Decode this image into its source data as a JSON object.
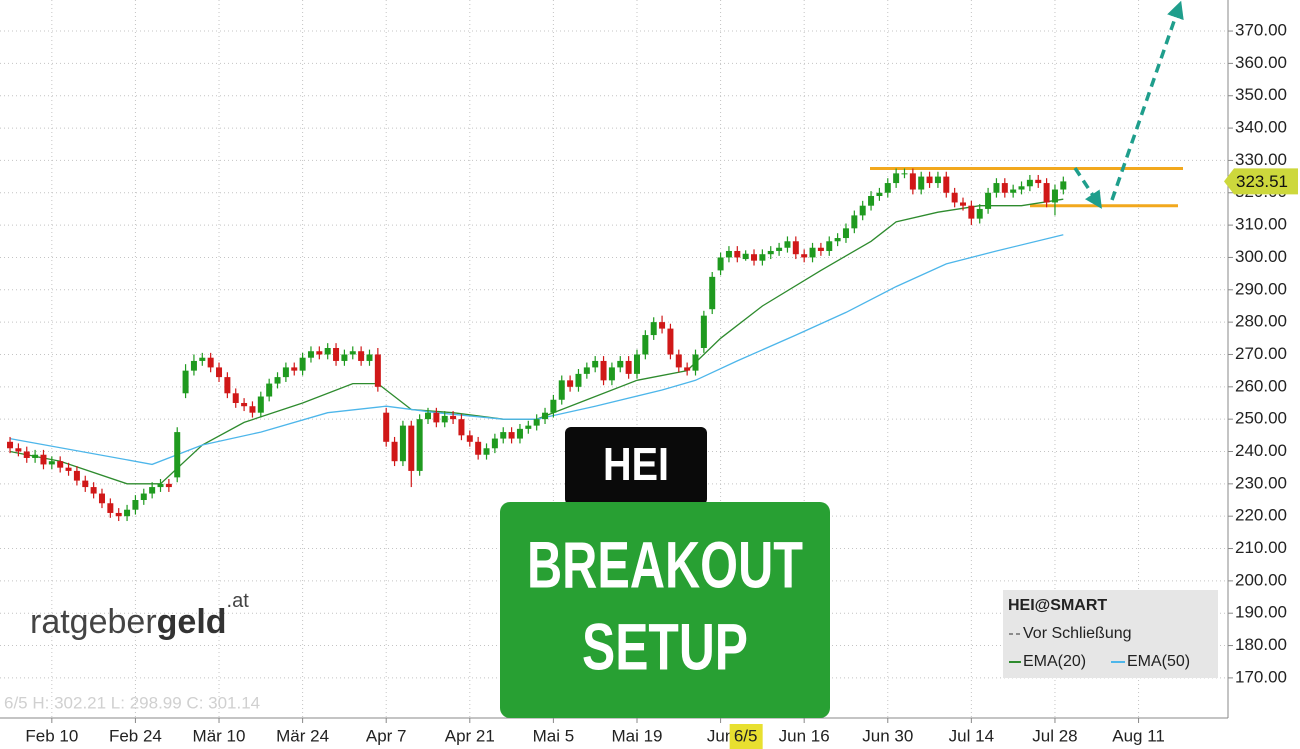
{
  "chart_data": {
    "type": "candlestick",
    "candles": {
      "name": "HEI@SMART",
      "up_color": "#1f9a1f",
      "down_color": "#d01818",
      "open": [
        243,
        241,
        240,
        238,
        239,
        236,
        237,
        235,
        234,
        231,
        229,
        227,
        224,
        221,
        220,
        222,
        225,
        227,
        229,
        230,
        232,
        258,
        265,
        268,
        269,
        266,
        263,
        258,
        255,
        254,
        252,
        257,
        261,
        263,
        266,
        265,
        269,
        271,
        270,
        272,
        268,
        270,
        271,
        268,
        270,
        252,
        243,
        237,
        248,
        234,
        250,
        252,
        249,
        251,
        250,
        245,
        243,
        239,
        241,
        244,
        246,
        244,
        247,
        248,
        250,
        252,
        256,
        262,
        260,
        264,
        266,
        268,
        262,
        266,
        268,
        264,
        270,
        276,
        280,
        278,
        270,
        266,
        265,
        272,
        284,
        296,
        300,
        302,
        299.5,
        301,
        299,
        301,
        302,
        303,
        305,
        301,
        300,
        303,
        302,
        305,
        306,
        309,
        313,
        316,
        319,
        320,
        323,
        326,
        326,
        321,
        325,
        323,
        325,
        320,
        317,
        316,
        312,
        315,
        320,
        323,
        320,
        321,
        322,
        324,
        323,
        317,
        321
      ],
      "high": [
        244.5,
        242.5,
        241.5,
        240.5,
        240.5,
        238.5,
        238.5,
        236.5,
        235.5,
        232.5,
        230.5,
        228.5,
        225.5,
        222.5,
        223.5,
        226.5,
        228.5,
        230.5,
        231.5,
        231.5,
        247.5,
        267,
        270,
        270.5,
        270.5,
        267.5,
        264.5,
        259.5,
        256.5,
        255.5,
        258.5,
        262.5,
        264.5,
        267.5,
        267.5,
        270.5,
        272.5,
        272.5,
        273.5,
        273.5,
        271.5,
        272.5,
        272.5,
        271.5,
        272,
        253.5,
        244.5,
        249.5,
        249.5,
        251.5,
        253.5,
        253.5,
        252.5,
        252.5,
        251.5,
        246.5,
        244.5,
        242.5,
        245.5,
        247.5,
        247.5,
        248.5,
        249.5,
        251.5,
        253.5,
        257.5,
        263.5,
        263.5,
        265.5,
        267.5,
        269.5,
        269.5,
        267.5,
        269.5,
        269.5,
        271.5,
        277.5,
        281.5,
        282,
        279.5,
        271.5,
        267.5,
        271.5,
        283.5,
        295.5,
        301.5,
        303.5,
        303.5,
        302.21,
        302.5,
        302.5,
        303.5,
        304.5,
        306.5,
        306.5,
        302.5,
        304.5,
        304.5,
        306.5,
        307.5,
        310.5,
        314.5,
        317.5,
        320.5,
        321.5,
        324.5,
        327.5,
        327.5,
        327.5,
        326.5,
        326.5,
        326.5,
        326.5,
        321.5,
        318.5,
        317.5,
        316.5,
        321.5,
        324.5,
        324.5,
        322.5,
        323.5,
        325.5,
        325.5,
        324.5,
        322.5,
        325
      ],
      "low": [
        239.5,
        238.5,
        236.5,
        236.5,
        234.5,
        234.5,
        233.5,
        232.5,
        229.5,
        227.5,
        225.5,
        222.5,
        219.5,
        218.5,
        218.5,
        220.5,
        223.5,
        225.5,
        227.5,
        227.5,
        230.5,
        256.5,
        263.5,
        266.5,
        264.5,
        261.5,
        256.5,
        253.5,
        252.5,
        250.5,
        250.5,
        255.5,
        259.5,
        261.5,
        263.5,
        263.5,
        267.5,
        268.5,
        268.5,
        266.5,
        266.5,
        268.5,
        266.5,
        266.5,
        258.5,
        241.5,
        235.5,
        235.5,
        229,
        232.5,
        248.5,
        247.5,
        247.5,
        248.5,
        243.5,
        241.5,
        237.5,
        237.5,
        239.5,
        242.5,
        242.5,
        242.5,
        245.5,
        246.5,
        248.5,
        250.5,
        254.5,
        258.5,
        258.5,
        262.5,
        264.5,
        260.5,
        260.5,
        264.5,
        262.5,
        262.5,
        268.5,
        274.5,
        276.5,
        268.5,
        264.5,
        263.5,
        263.5,
        270.5,
        282.5,
        294.5,
        298.5,
        298.5,
        298.99,
        297.5,
        297.5,
        299.5,
        300.5,
        301.5,
        299.5,
        298.5,
        298.5,
        300.5,
        300.5,
        303.5,
        304.5,
        307.5,
        311.5,
        314.5,
        317.5,
        318.5,
        321.5,
        324.5,
        319.5,
        319.5,
        321.5,
        321.5,
        318.5,
        315.5,
        314.5,
        310,
        310.5,
        313.5,
        318.5,
        318.5,
        318.5,
        319.5,
        320.5,
        321.5,
        315.5,
        313,
        319.5
      ],
      "close": [
        241,
        240,
        238,
        239,
        236,
        237,
        235,
        234,
        231,
        229,
        227,
        224,
        221,
        220,
        222,
        225,
        227,
        229,
        230,
        229,
        246,
        265,
        268,
        269,
        266,
        263,
        258,
        255,
        254,
        252,
        257,
        261,
        263,
        266,
        265,
        269,
        271,
        270,
        272,
        268,
        270,
        271,
        268,
        270,
        260,
        243,
        237,
        248,
        234,
        250,
        252,
        249,
        251,
        250,
        245,
        243,
        239,
        241,
        244,
        246,
        244,
        247,
        248,
        250,
        252,
        256,
        262,
        260,
        264,
        266,
        268,
        262,
        266,
        268,
        264,
        270,
        276,
        280,
        278,
        270,
        266,
        265,
        270,
        282,
        294,
        300,
        302,
        300,
        301.14,
        299,
        301,
        302,
        303,
        305,
        301,
        300,
        303,
        302,
        305,
        306,
        309,
        313,
        316,
        319,
        320,
        323,
        326,
        326,
        321,
        325,
        323,
        325,
        320,
        317,
        316,
        312,
        315,
        320,
        323,
        320,
        321,
        322,
        324,
        323,
        317,
        321,
        323.51
      ]
    },
    "series": [
      {
        "name": "EMA(20)",
        "color": "#2e8b2e",
        "x": [
          0,
          6,
          14,
          18,
          23,
          28,
          35,
          41,
          44,
          48,
          53,
          59,
          63,
          68,
          75,
          81,
          85,
          90,
          97,
          103,
          106,
          111,
          116,
          121,
          126
        ],
        "values": [
          240,
          237,
          230,
          230,
          242,
          249,
          255,
          261,
          261,
          253,
          252,
          250,
          250,
          255,
          262,
          265,
          275,
          285,
          296,
          305,
          311,
          314,
          316,
          316,
          318
        ]
      },
      {
        "name": "EMA(50)",
        "color": "#4db6ea",
        "x": [
          0,
          17,
          23,
          30,
          38,
          45,
          51,
          59,
          63,
          70,
          78,
          82,
          87,
          94,
          100,
          106,
          112,
          118,
          126
        ],
        "values": [
          244,
          236,
          242,
          246,
          252,
          254,
          252,
          250,
          250,
          254,
          259,
          262,
          268,
          276,
          283,
          291,
          298,
          302,
          307
        ]
      }
    ],
    "xlim": [
      -1.2,
      145.7
    ],
    "xticks": [
      {
        "value": 5,
        "label": "Feb 10"
      },
      {
        "value": 15,
        "label": "Feb 24"
      },
      {
        "value": 25,
        "label": "Mär 10"
      },
      {
        "value": 35,
        "label": "Mär 24"
      },
      {
        "value": 45,
        "label": "Apr 7"
      },
      {
        "value": 55,
        "label": "Apr 21"
      },
      {
        "value": 65,
        "label": "Mai 5"
      },
      {
        "value": 75,
        "label": "Mai 19"
      },
      {
        "value": 85,
        "label": "Jun"
      },
      {
        "value": 95,
        "label": "Jun 16"
      },
      {
        "value": 105,
        "label": "Jun 30"
      },
      {
        "value": 115,
        "label": "Jul 14"
      },
      {
        "value": 125,
        "label": "Jul 28"
      },
      {
        "value": 135,
        "label": "Aug 11"
      }
    ],
    "cursor": {
      "value": 88,
      "label": "6/5"
    },
    "ylim": [
      157.6,
      379.6
    ],
    "yticks": [
      {
        "value": 170,
        "label": "170.00"
      },
      {
        "value": 180,
        "label": "180.00"
      },
      {
        "value": 190,
        "label": "190.00"
      },
      {
        "value": 200,
        "label": "200.00"
      },
      {
        "value": 210,
        "label": "210.00"
      },
      {
        "value": 220,
        "label": "220.00"
      },
      {
        "value": 230,
        "label": "230.00"
      },
      {
        "value": 240,
        "label": "240.00"
      },
      {
        "value": 250,
        "label": "250.00"
      },
      {
        "value": 260,
        "label": "260.00"
      },
      {
        "value": 270,
        "label": "270.00"
      },
      {
        "value": 280,
        "label": "280.00"
      },
      {
        "value": 290,
        "label": "290.00"
      },
      {
        "value": 300,
        "label": "300.00"
      },
      {
        "value": 310,
        "label": "310.00"
      },
      {
        "value": 320,
        "label": "320.00"
      },
      {
        "value": 330,
        "label": "330.00"
      },
      {
        "value": 340,
        "label": "340.00"
      },
      {
        "value": 350,
        "label": "350.00"
      },
      {
        "value": 360,
        "label": "360.00"
      },
      {
        "value": 370,
        "label": "370.00"
      }
    ],
    "grid": true,
    "resistance": 327.5,
    "support": 316,
    "level_color": "#f2a81d",
    "info_line": "6/5 H: 302.21 L: 298.99 C: 301.14",
    "legend_note": "Vor Schließung"
  },
  "overlay": {
    "ticker": "HEI",
    "headline": [
      "BREAKOUT",
      "SETUP"
    ]
  },
  "logo": {
    "main": "ratgeber",
    "bold": "geld",
    "suffix": ".at"
  }
}
